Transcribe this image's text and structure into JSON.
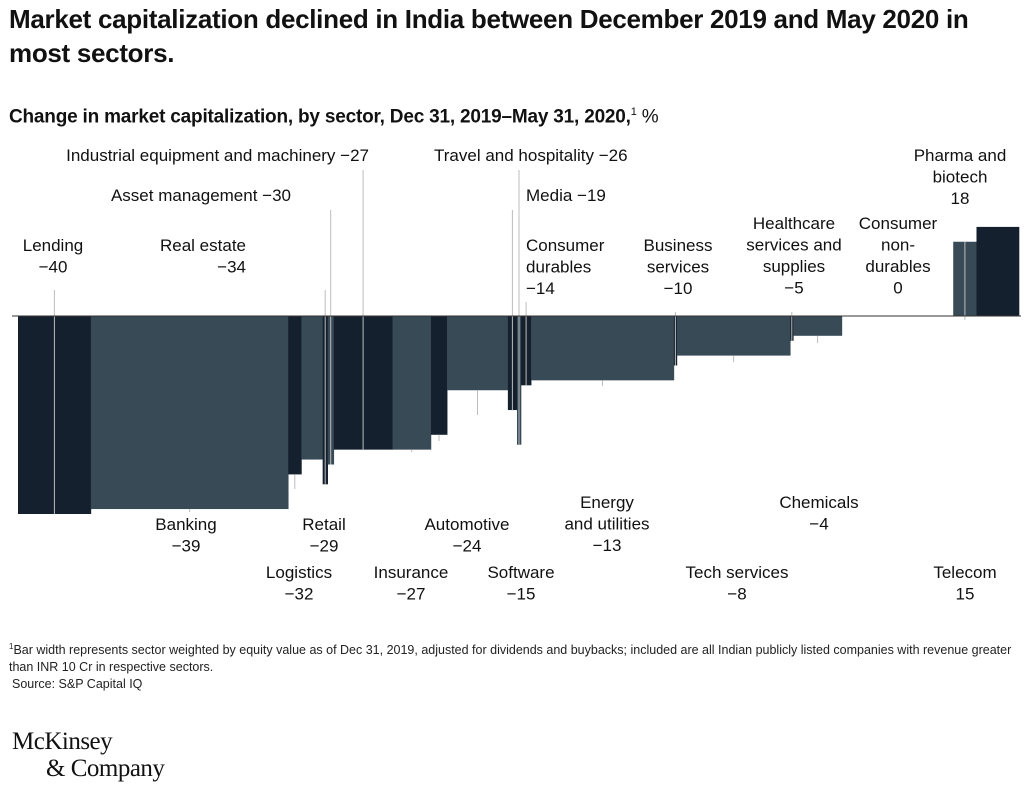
{
  "header": {
    "title": "Market capitalization declined in India between December 2019 and May 2020 in most sectors.",
    "subtitle": "Change in market capitalization, by sector, Dec 31, 2019–May 31, 2020,",
    "subtitle_footnote_mark": "1",
    "subtitle_unit": "%"
  },
  "footnote": {
    "mark": "1",
    "text": "Bar width represents sector weighted by equity value as of Dec 31, 2019, adjusted for dividends and buybacks; included are all Indian publicly listed companies with revenue greater than INR 10 Cr in respective sectors.",
    "source": "Source: S&P Capital IQ"
  },
  "logo": {
    "line1": "McKinsey",
    "line2": "& Company"
  },
  "colors": {
    "dark": "#14202d",
    "slate": "#394a57",
    "leader": "#bcbcbc",
    "axis": "#333333"
  },
  "chart_data": {
    "type": "bar",
    "variant": "variable-width (marimekko) bar, sorted ascending",
    "ylabel": "%",
    "categories": [
      "Lending",
      "Banking",
      "Logistics",
      "Retail",
      "Real estate",
      "Asset management",
      "Industrial equipment and machinery",
      "Insurance",
      "Automotive",
      "Software",
      "Media",
      "Travel and hospitality",
      "Consumer durables",
      "Energy and utilities",
      "Business services",
      "Tech services",
      "Healthcare services and supplies",
      "Chemicals",
      "Consumer non-durables",
      "Telecom",
      "Pharma and biotech"
    ],
    "values": [
      -40,
      -39,
      -32,
      -29,
      -34,
      -30,
      -27,
      -27,
      -24,
      -15,
      -19,
      -26,
      -14,
      -13,
      -10,
      -8,
      -5,
      -4,
      0,
      15,
      18
    ],
    "widths": [
      7.2,
      19.5,
      1.3,
      2.1,
      0.5,
      0.6,
      5.8,
      3.8,
      1.6,
      6.0,
      0.9,
      0.4,
      1.0,
      14.1,
      0.3,
      11.2,
      0.3,
      4.8,
      11.0,
      2.3,
      4.2
    ],
    "bar_colors": [
      "dark",
      "slate",
      "dark",
      "slate",
      "dark",
      "slate",
      "dark",
      "slate",
      "dark",
      "slate",
      "dark",
      "slate",
      "dark",
      "slate",
      "dark",
      "slate",
      "dark",
      "slate",
      "dark",
      "slate",
      "dark"
    ],
    "labels": [
      {
        "lines": [
          "Lending",
          "−40"
        ],
        "side": "top"
      },
      {
        "lines": [
          "Banking",
          "−39"
        ],
        "side": "bottom"
      },
      {
        "lines": [
          "Logistics",
          "−32"
        ],
        "side": "bottom"
      },
      {
        "lines": [
          "Retail",
          "−29"
        ],
        "side": "bottom"
      },
      {
        "lines": [
          "Real estate",
          "−34"
        ],
        "side": "top"
      },
      {
        "lines": [
          "Asset management −30"
        ],
        "side": "top"
      },
      {
        "lines": [
          "Industrial equipment and machinery −27"
        ],
        "side": "top"
      },
      {
        "lines": [
          "Insurance",
          "−27"
        ],
        "side": "bottom"
      },
      {
        "lines": [
          "Automotive",
          "−24"
        ],
        "side": "bottom"
      },
      {
        "lines": [
          "Software",
          "−15"
        ],
        "side": "bottom"
      },
      {
        "lines": [
          "Media −19"
        ],
        "side": "top"
      },
      {
        "lines": [
          "Travel and hospitality −26"
        ],
        "side": "top"
      },
      {
        "lines": [
          "Consumer",
          "durables",
          "−14"
        ],
        "side": "top"
      },
      {
        "lines": [
          "Energy",
          "and utilities",
          "−13"
        ],
        "side": "bottom"
      },
      {
        "lines": [
          "Business",
          "services",
          "−10"
        ],
        "side": "top"
      },
      {
        "lines": [
          "Tech services",
          "−8"
        ],
        "side": "bottom"
      },
      {
        "lines": [
          "Healthcare",
          "services and",
          "supplies",
          "−5"
        ],
        "side": "top"
      },
      {
        "lines": [
          "Chemicals",
          "−4"
        ],
        "side": "bottom"
      },
      {
        "lines": [
          "Consumer",
          "non-",
          "durables",
          "0"
        ],
        "side": "top"
      },
      {
        "lines": [
          "Telecom",
          "15"
        ],
        "side": "bottom"
      },
      {
        "lines": [
          "Pharma and",
          "biotech",
          "18"
        ],
        "side": "top"
      }
    ],
    "legend": "none",
    "grid": false
  }
}
